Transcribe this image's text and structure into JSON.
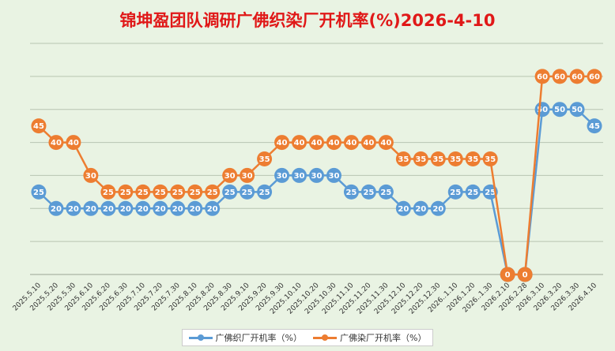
{
  "chart_data": {
    "type": "line",
    "title": "锦坤盈团队调研广佛织染厂开机率(%)2026-4-10",
    "x": [
      "2025.5.10",
      "2025.5.20",
      "2025.5.30",
      "2025.6.10",
      "2025.6.20",
      "2025.6.30",
      "2025.7.10",
      "2025.7.20",
      "2025.7.30",
      "2025.8.10",
      "2025.8.20",
      "2025.8.30",
      "2025.9.10",
      "2025.9.20",
      "2025.9.30",
      "2025.10.10",
      "2025.10.20",
      "2025.10.30",
      "2025.11.10",
      "2025.11.20",
      "2025.11.30",
      "2025.12.10",
      "2025.12.20",
      "2025.12.30",
      "2026..1.10",
      "2026.1.20",
      "2026..1.30",
      "2026.2.10",
      "2026.2.28",
      "2026.3.10",
      "2026.3.20",
      "2026.3.30",
      "2026.4.10"
    ],
    "series": [
      {
        "name": "广佛织厂开机率（%）",
        "color": "#5b9bd5",
        "values": [
          25,
          20,
          20,
          20,
          20,
          20,
          20,
          20,
          20,
          20,
          20,
          25,
          25,
          25,
          30,
          30,
          30,
          30,
          25,
          25,
          25,
          20,
          20,
          20,
          25,
          25,
          25,
          0,
          0,
          50,
          50,
          50,
          45
        ]
      },
      {
        "name": "广佛染厂开机率（%）",
        "color": "#ed7d31",
        "values": [
          45,
          40,
          40,
          30,
          25,
          25,
          25,
          25,
          25,
          25,
          25,
          30,
          30,
          35,
          40,
          40,
          40,
          40,
          40,
          40,
          40,
          35,
          35,
          35,
          35,
          35,
          35,
          0,
          0,
          60,
          60,
          60,
          60
        ]
      }
    ],
    "ylim": [
      0,
      70
    ],
    "grid": true,
    "legend": "bottom"
  }
}
